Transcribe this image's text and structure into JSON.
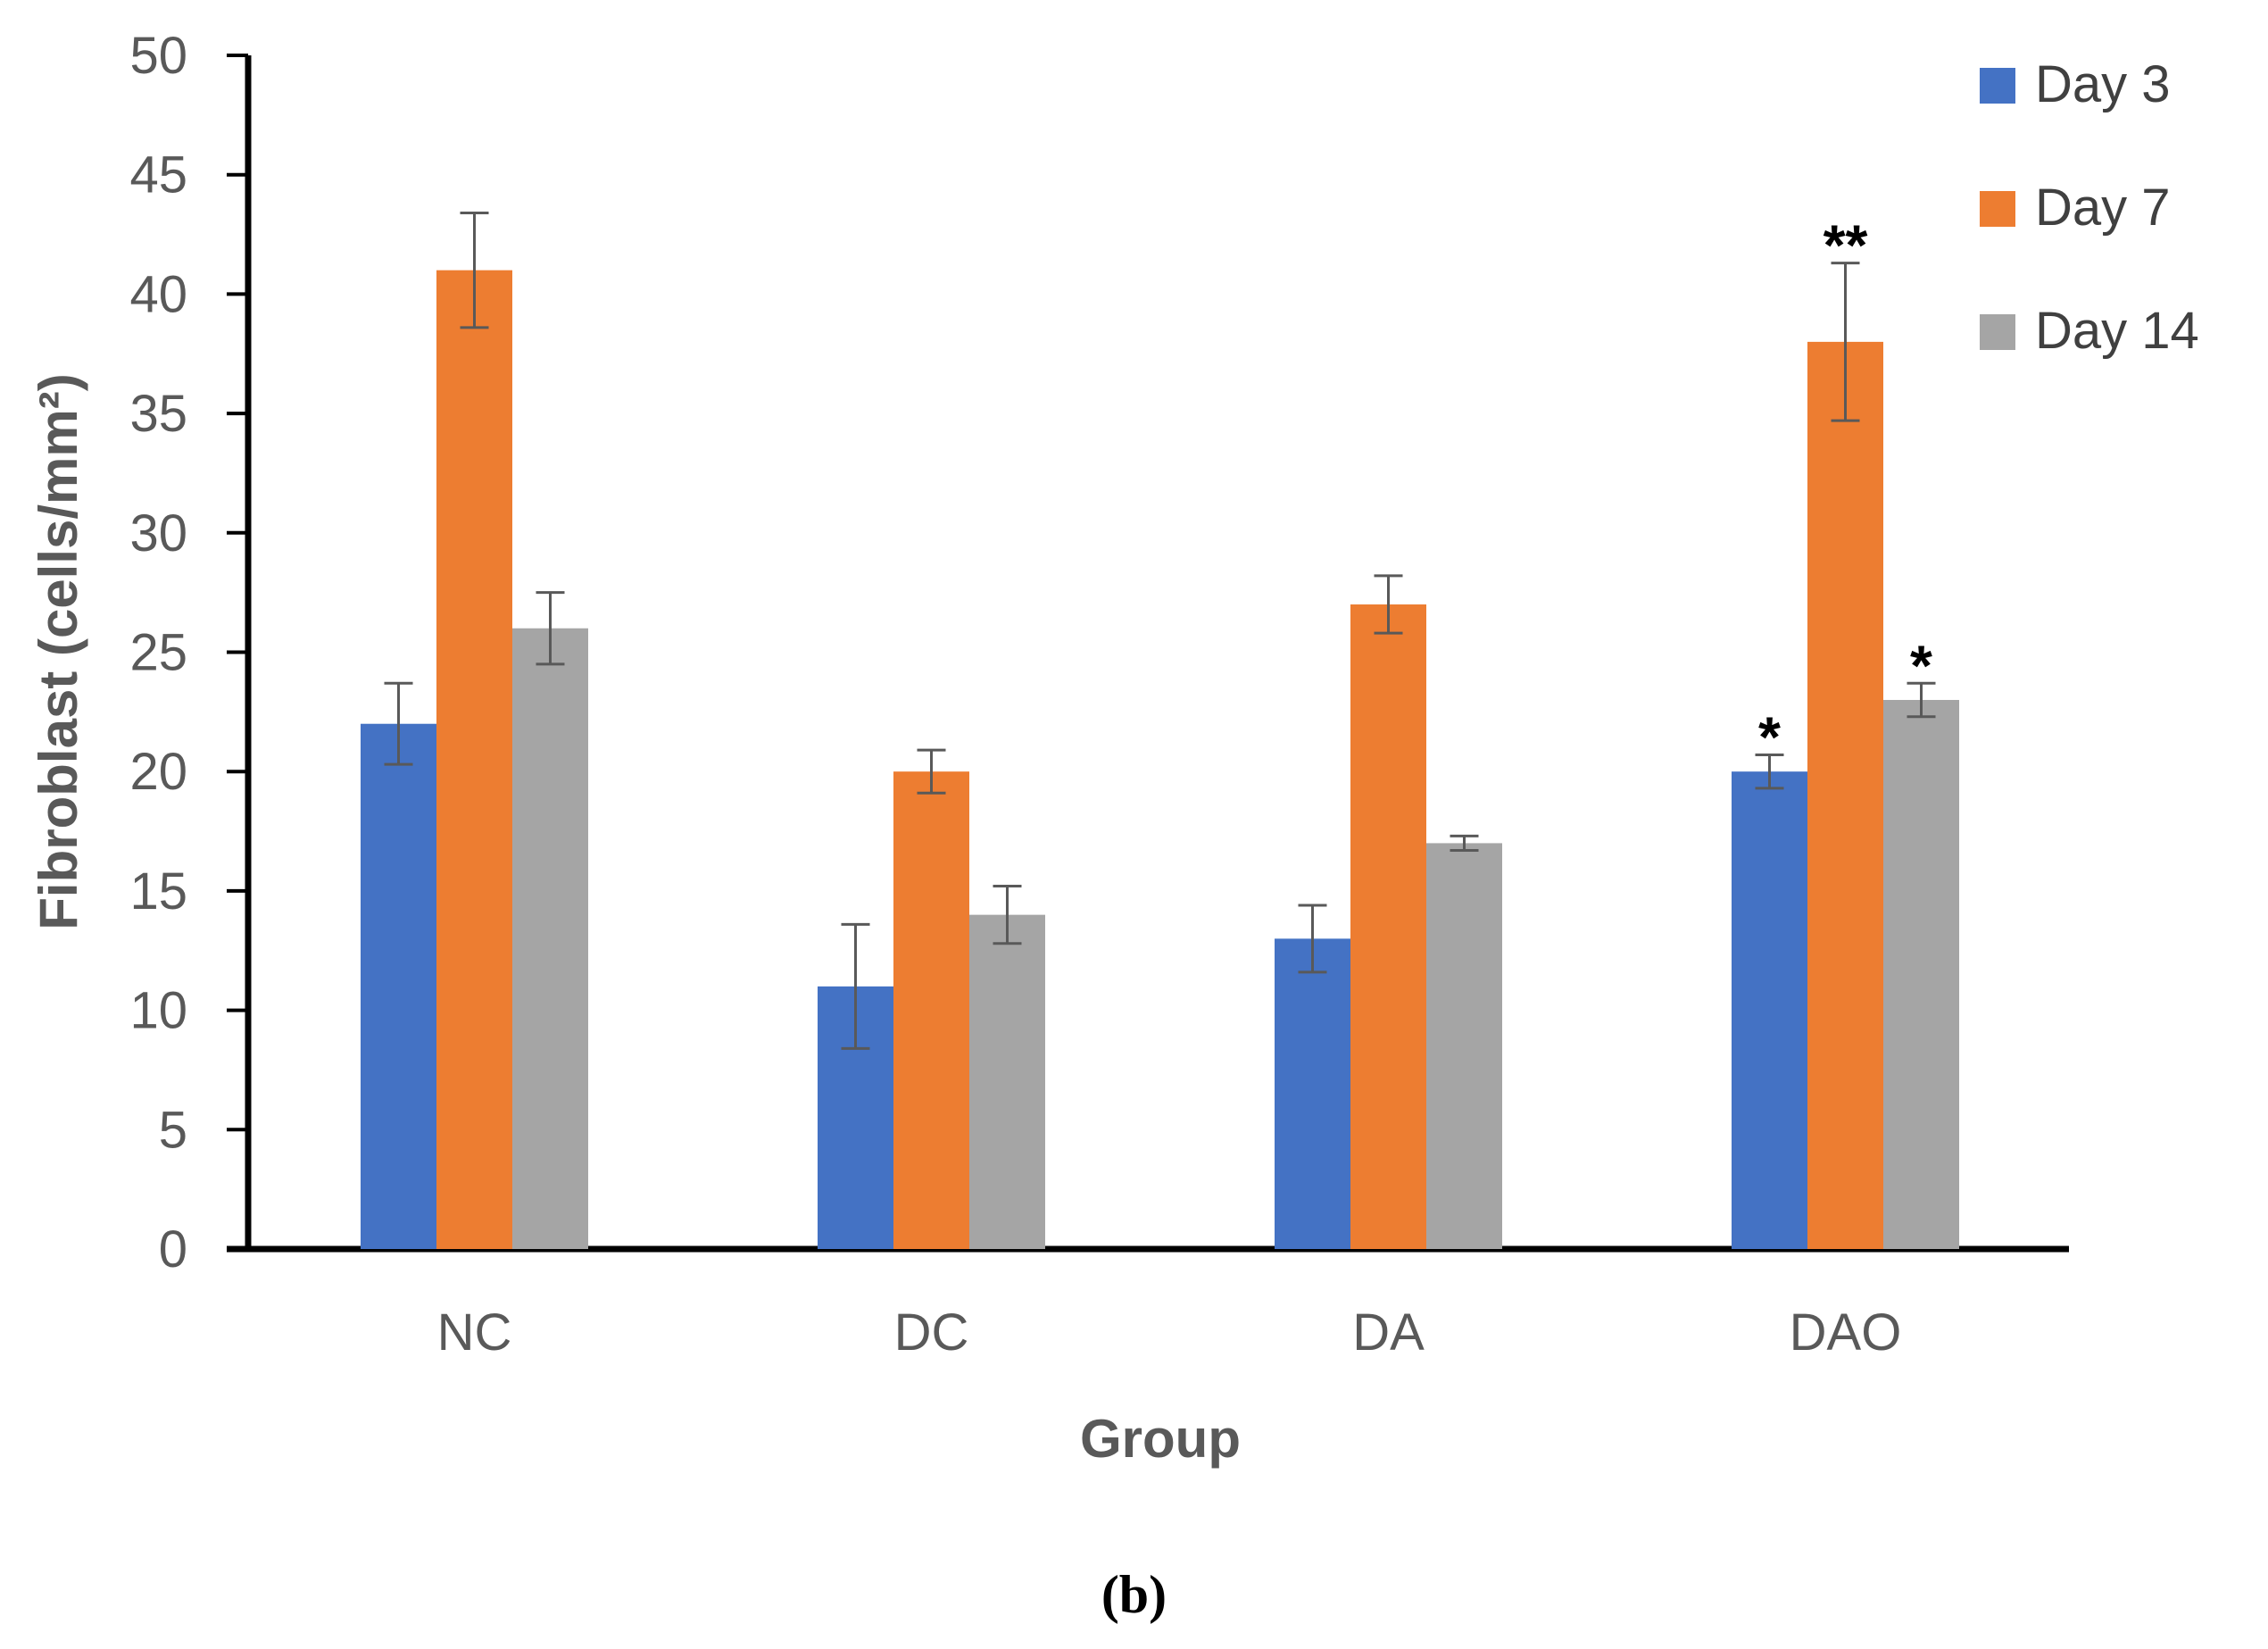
{
  "chart_data": {
    "type": "bar",
    "title": "",
    "xlabel": "Group",
    "ylabel": "Fibroblast (cells/mm²)",
    "ylim": [
      0,
      50
    ],
    "yticks": [
      0,
      5,
      10,
      15,
      20,
      25,
      30,
      35,
      40,
      45,
      50
    ],
    "categories": [
      "NC",
      "DC",
      "DA",
      "DAO"
    ],
    "series": [
      {
        "name": "Day 3",
        "color": "#4472C4",
        "values": [
          22,
          11,
          13,
          20
        ],
        "errors": [
          1.7,
          2.6,
          1.4,
          0.7
        ]
      },
      {
        "name": "Day 7",
        "color": "#ED7D31",
        "values": [
          41,
          20,
          27,
          38
        ],
        "errors": [
          2.4,
          0.9,
          1.2,
          3.3
        ]
      },
      {
        "name": "Day 14",
        "color": "#A5A5A5",
        "values": [
          26,
          14,
          17,
          23
        ],
        "errors": [
          1.5,
          1.2,
          0.3,
          0.7
        ]
      }
    ],
    "annotations": [
      {
        "category": "DAO",
        "series": "Day 3",
        "text": "*"
      },
      {
        "category": "DAO",
        "series": "Day 7",
        "text": "**"
      },
      {
        "category": "DAO",
        "series": "Day 14",
        "text": "*"
      }
    ],
    "legend_position": "top-right",
    "grid": false
  },
  "panel_label": "(b)"
}
